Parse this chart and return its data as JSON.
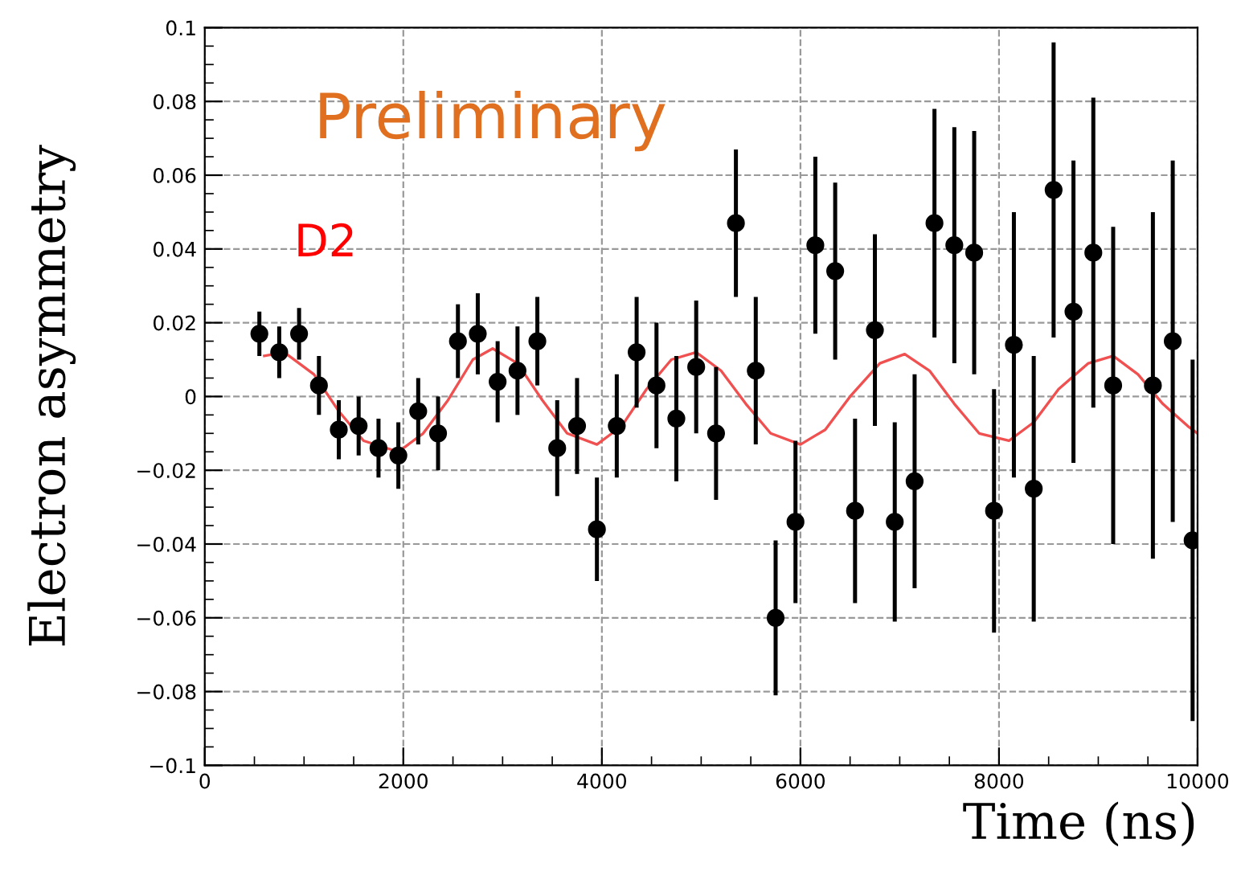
{
  "chart_data": {
    "type": "scatter",
    "xlabel": "Time (ns)",
    "ylabel": "Electron asymmetry",
    "annotations": [
      "Preliminary",
      "D2"
    ],
    "xlim": [
      0,
      10000
    ],
    "xticks": [
      0,
      2000,
      4000,
      6000,
      8000,
      10000
    ],
    "ylim": [
      -0.1,
      0.1
    ],
    "yticks": [
      {
        "value": -0.1,
        "label": "−0.1"
      },
      {
        "value": -0.08,
        "label": "−0.08"
      },
      {
        "value": -0.06,
        "label": "−0.06"
      },
      {
        "value": -0.04,
        "label": "−0.04"
      },
      {
        "value": -0.02,
        "label": "−0.02"
      },
      0,
      0.02,
      0.04,
      0.06,
      0.08,
      0.1
    ],
    "grid": true,
    "legend": false,
    "marker": "circle",
    "series": [
      {
        "color": "#000000",
        "x": [
          550,
          750,
          950,
          1150,
          1350,
          1550,
          1750,
          1950,
          2150,
          2350,
          2550,
          2750,
          2950,
          3150,
          3350,
          3550,
          3750,
          3950,
          4150,
          4350,
          4550,
          4750,
          4950,
          5150,
          5350,
          5550,
          5750,
          5950,
          6150,
          6350,
          6550,
          6750,
          6950,
          7150,
          7350,
          7550,
          7750,
          7950,
          8150,
          8350,
          8550,
          8750,
          8950,
          9150,
          9550,
          9750,
          9950
        ],
        "values": [
          0.017,
          0.012,
          0.017,
          0.003,
          -0.009,
          -0.008,
          -0.014,
          -0.016,
          -0.004,
          -0.01,
          0.015,
          0.017,
          0.004,
          0.007,
          0.015,
          -0.014,
          -0.008,
          -0.036,
          -0.008,
          0.012,
          0.003,
          -0.006,
          0.008,
          -0.01,
          0.047,
          0.007,
          -0.06,
          -0.034,
          0.041,
          0.034,
          -0.031,
          0.018,
          -0.034,
          -0.023,
          0.047,
          0.041,
          0.039,
          -0.031,
          0.014,
          -0.025,
          0.056,
          0.023,
          0.039,
          0.003,
          0.003,
          0.015,
          -0.039
        ],
        "errors": [
          0.006,
          0.007,
          0.007,
          0.008,
          0.008,
          0.008,
          0.008,
          0.009,
          0.009,
          0.01,
          0.01,
          0.011,
          0.011,
          0.012,
          0.012,
          0.013,
          0.013,
          0.014,
          0.014,
          0.015,
          0.017,
          0.017,
          0.018,
          0.018,
          0.02,
          0.02,
          0.021,
          0.022,
          0.024,
          0.024,
          0.025,
          0.026,
          0.027,
          0.029,
          0.031,
          0.032,
          0.033,
          0.033,
          0.036,
          0.036,
          0.04,
          0.041,
          0.042,
          0.043,
          0.047,
          0.049,
          0.049
        ]
      },
      {
        "type": "line",
        "color": "#f05050",
        "marker": "none",
        "line_style": "solid",
        "x": [
          600,
          800,
          1100,
          1350,
          1600,
          1950,
          2200,
          2450,
          2700,
          2900,
          3150,
          3400,
          3650,
          3950,
          4200,
          4450,
          4700,
          4950,
          5200,
          5450,
          5700,
          6000,
          6250,
          6500,
          6800,
          7050,
          7300,
          7550,
          7800,
          8100,
          8350,
          8600,
          8900,
          9150,
          9400,
          9650,
          9900,
          10000
        ],
        "values": [
          0.011,
          0.012,
          0.006,
          -0.004,
          -0.012,
          -0.015,
          -0.01,
          -0.001,
          0.01,
          0.013,
          0.009,
          -0.001,
          -0.01,
          -0.013,
          -0.008,
          0.002,
          0.01,
          0.012,
          0.007,
          -0.002,
          -0.01,
          -0.013,
          -0.009,
          0.0,
          0.009,
          0.0115,
          0.007,
          -0.002,
          -0.01,
          -0.012,
          -0.007,
          0.002,
          0.009,
          0.011,
          0.006,
          -0.002,
          -0.008,
          -0.01
        ]
      }
    ]
  }
}
